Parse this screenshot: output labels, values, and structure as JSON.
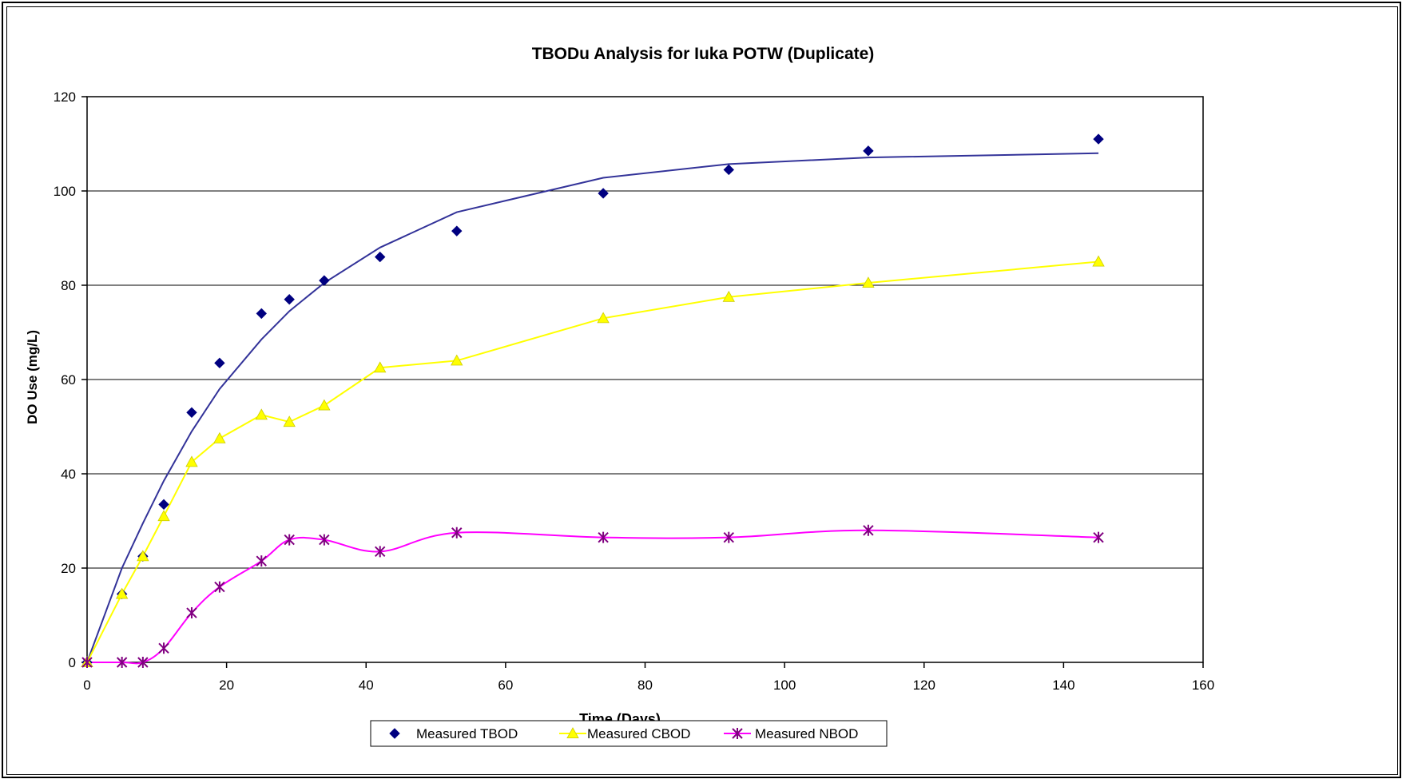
{
  "chart_data": {
    "type": "scatter",
    "title": "TBODu Analysis for Iuka POTW (Duplicate)",
    "xlabel": "Time (Days)",
    "ylabel": "DO Use (mg/L)",
    "xlim": [
      0,
      160
    ],
    "ylim": [
      0,
      120
    ],
    "xticks": [
      0,
      20,
      40,
      60,
      80,
      100,
      120,
      140,
      160
    ],
    "yticks": [
      0,
      20,
      40,
      60,
      80,
      100,
      120
    ],
    "grid": "horizontal major gridlines",
    "legend_position": "bottom",
    "series": [
      {
        "name": "Measured TBOD",
        "marker": "diamond",
        "color": "#000080",
        "points": [
          {
            "x": 0,
            "y": 0
          },
          {
            "x": 5,
            "y": 14.5
          },
          {
            "x": 8,
            "y": 22.5
          },
          {
            "x": 11,
            "y": 33.5
          },
          {
            "x": 15,
            "y": 53
          },
          {
            "x": 19,
            "y": 63.5
          },
          {
            "x": 25,
            "y": 74
          },
          {
            "x": 29,
            "y": 77
          },
          {
            "x": 34,
            "y": 81
          },
          {
            "x": 42,
            "y": 86
          },
          {
            "x": 53,
            "y": 91.5
          },
          {
            "x": 74,
            "y": 99.5
          },
          {
            "x": 92,
            "y": 104.5
          },
          {
            "x": 112,
            "y": 108.5
          },
          {
            "x": 145,
            "y": 111
          }
        ]
      },
      {
        "name": "Measured CBOD",
        "marker": "triangle",
        "color": "#FFFF00",
        "points": [
          {
            "x": 0,
            "y": 0
          },
          {
            "x": 5,
            "y": 14.5
          },
          {
            "x": 8,
            "y": 22.5
          },
          {
            "x": 11,
            "y": 31
          },
          {
            "x": 15,
            "y": 42.5
          },
          {
            "x": 19,
            "y": 47.5
          },
          {
            "x": 25,
            "y": 52.5
          },
          {
            "x": 29,
            "y": 51
          },
          {
            "x": 34,
            "y": 54.5
          },
          {
            "x": 42,
            "y": 62.5
          },
          {
            "x": 53,
            "y": 64
          },
          {
            "x": 74,
            "y": 73
          },
          {
            "x": 92,
            "y": 77.5
          },
          {
            "x": 112,
            "y": 80.5
          },
          {
            "x": 145,
            "y": 85
          }
        ]
      },
      {
        "name": "Measured NBOD",
        "marker": "star",
        "color": "#FF00FF",
        "marker_color": "#800080",
        "points": [
          {
            "x": 0,
            "y": 0
          },
          {
            "x": 5,
            "y": 0
          },
          {
            "x": 8,
            "y": 0
          },
          {
            "x": 11,
            "y": 3
          },
          {
            "x": 15,
            "y": 10.5
          },
          {
            "x": 19,
            "y": 16
          },
          {
            "x": 25,
            "y": 21.5
          },
          {
            "x": 29,
            "y": 26
          },
          {
            "x": 34,
            "y": 26
          },
          {
            "x": 42,
            "y": 23.5
          },
          {
            "x": 53,
            "y": 27.5
          },
          {
            "x": 74,
            "y": 26.5
          },
          {
            "x": 92,
            "y": 26.5
          },
          {
            "x": 112,
            "y": 28
          },
          {
            "x": 145,
            "y": 26.5
          }
        ]
      }
    ],
    "fit_curve": {
      "color": "#333399",
      "points": [
        {
          "x": 0,
          "y": 0
        },
        {
          "x": 5,
          "y": 20
        },
        {
          "x": 8,
          "y": 29.5
        },
        {
          "x": 11,
          "y": 38.5
        },
        {
          "x": 15,
          "y": 49
        },
        {
          "x": 19,
          "y": 58
        },
        {
          "x": 25,
          "y": 68.5
        },
        {
          "x": 29,
          "y": 74.5
        },
        {
          "x": 34,
          "y": 80.5
        },
        {
          "x": 42,
          "y": 88
        },
        {
          "x": 53,
          "y": 95.5
        },
        {
          "x": 74,
          "y": 102.8
        },
        {
          "x": 92,
          "y": 105.7
        },
        {
          "x": 112,
          "y": 107.1
        },
        {
          "x": 145,
          "y": 108
        }
      ]
    }
  }
}
